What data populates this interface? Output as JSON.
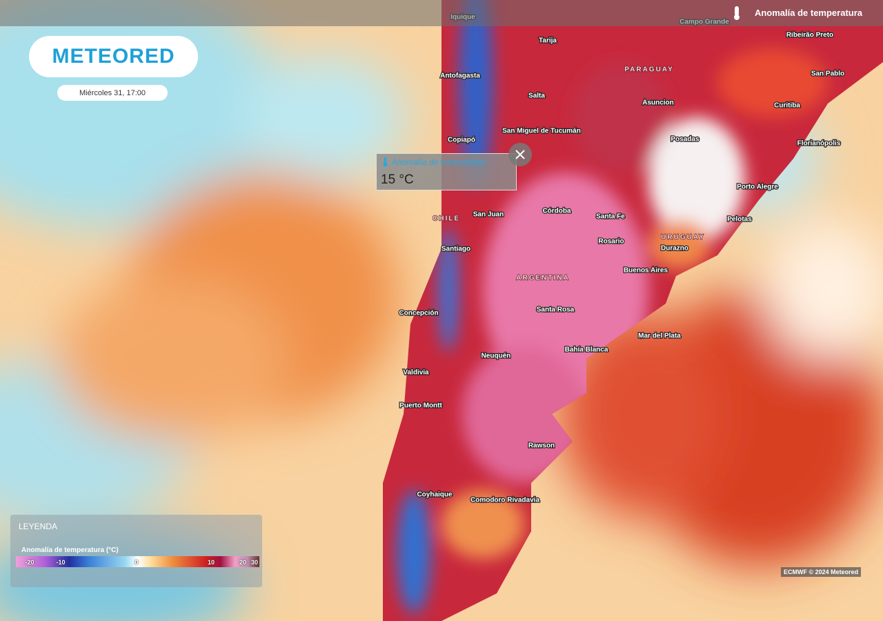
{
  "header": {
    "logo": "METEORED",
    "datetime": "Miércoles 31, 17:00",
    "layer": "Anomalía de temperatura"
  },
  "popup": {
    "title": "Anomalía de temperatura",
    "value": "15 °C"
  },
  "places": [
    "Iquique",
    "Campo Grande",
    "Tarija",
    "Ribeirão Preto",
    "Antofagasta",
    "PARAGUAY",
    "San Pablo",
    "Salta",
    "Asuncion",
    "Curitiba",
    "San Miguel de Tucumán",
    "Copiapó",
    "Posadas",
    "Florianópolis",
    "Porto Alegre",
    "San Juan",
    "Córdoba",
    "CHILE",
    "Santa Fe",
    "Pelotas",
    "URUGUAY",
    "Rosario",
    "Santiago",
    "Durazno",
    "Buenos Aires",
    "ARGENTINA",
    "Santa Rosa",
    "Concepción",
    "Mar del Plata",
    "Bahía Blanca",
    "Neuquén",
    "Valdivia",
    "Puerto Montt",
    "Rawson",
    "Coyhaique",
    "Comodoro Rivadavia"
  ],
  "legend": {
    "title": "LEYENDA",
    "subtitle": "Anomalía de temperatura (°C)",
    "ticks": [
      -20,
      -10,
      0,
      10,
      20,
      30
    ]
  },
  "credit": "ECMWF © 2024 Meteored"
}
